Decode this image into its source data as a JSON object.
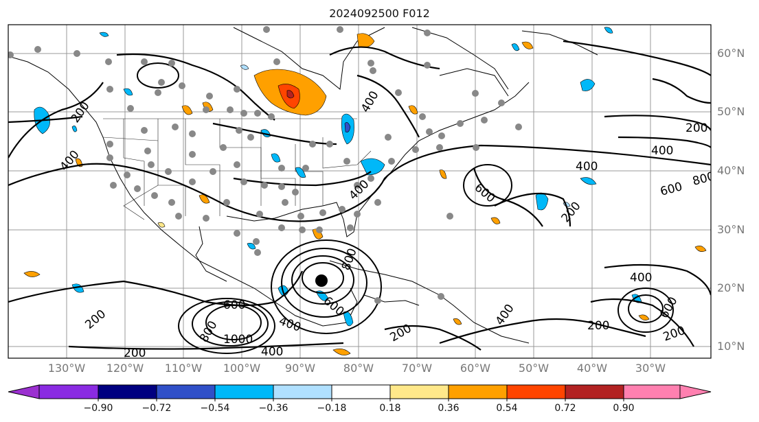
{
  "title": "2024092500 F012",
  "map": {
    "lon_labels": [
      "130°W",
      "120°W",
      "110°W",
      "100°W",
      "90°W",
      "80°W",
      "70°W",
      "60°W",
      "50°W",
      "40°W",
      "30°W"
    ],
    "lat_labels": [
      "60°N",
      "50°N",
      "40°N",
      "30°N",
      "20°N",
      "10°N"
    ],
    "contour_labels": [
      "200",
      "400",
      "600",
      "800",
      "1000"
    ],
    "storm_marker": "black-dot-low-center"
  },
  "colorbar": {
    "labels": [
      "−0.90",
      "−0.72",
      "−0.54",
      "−0.36",
      "−0.18",
      "0.18",
      "0.36",
      "0.54",
      "0.72",
      "0.90"
    ],
    "colors": [
      "#9b30d0",
      "#000080",
      "#3050c8",
      "#00b8f8",
      "#b0e0ff",
      "#ffffff",
      "#ffe88a",
      "#ffa000",
      "#ff4500",
      "#b22222",
      "#ff80b0"
    ]
  }
}
